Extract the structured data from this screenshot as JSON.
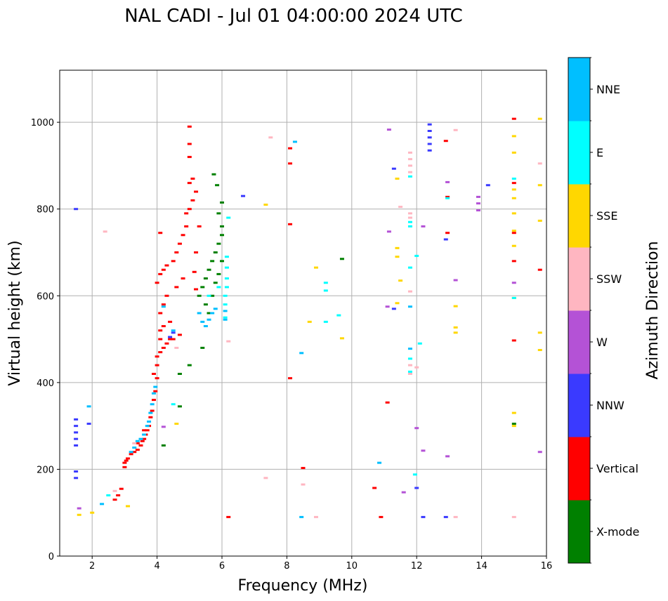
{
  "chart_data": {
    "type": "scatter",
    "title": "NAL CADI - Jul 01 04:00:00 2024 UTC",
    "xlabel": "Frequency (MHz)",
    "ylabel": "Virtual height (km)",
    "xlim": [
      1,
      16
    ],
    "ylim": [
      0,
      1120
    ],
    "xticks": [
      2,
      4,
      6,
      8,
      10,
      12,
      14,
      16
    ],
    "yticks": [
      0,
      200,
      400,
      600,
      800,
      1000
    ],
    "grid": true,
    "colorbar": {
      "title": "Azimuth Direction",
      "categories": [
        {
          "name": "X-mode",
          "color": "#008000"
        },
        {
          "name": "Vertical",
          "color": "#ff0000"
        },
        {
          "name": "NNW",
          "color": "#3a3aff"
        },
        {
          "name": "W",
          "color": "#b452d6"
        },
        {
          "name": "SSW",
          "color": "#ffb6c1"
        },
        {
          "name": "SSE",
          "color": "#ffd700"
        },
        {
          "name": "E",
          "color": "#00ffff"
        },
        {
          "name": "NNE",
          "color": "#00bfff"
        }
      ]
    },
    "series": [
      {
        "name": "Vertical",
        "color": "#ff0000",
        "points": [
          [
            2.7,
            130
          ],
          [
            2.8,
            140
          ],
          [
            2.9,
            155
          ],
          [
            3.0,
            205
          ],
          [
            3.0,
            215
          ],
          [
            3.05,
            220
          ],
          [
            3.1,
            225
          ],
          [
            3.2,
            235
          ],
          [
            3.3,
            240
          ],
          [
            3.4,
            245
          ],
          [
            3.5,
            255
          ],
          [
            3.55,
            265
          ],
          [
            3.6,
            270
          ],
          [
            3.65,
            280
          ],
          [
            3.7,
            290
          ],
          [
            3.75,
            300
          ],
          [
            3.8,
            320
          ],
          [
            3.85,
            335
          ],
          [
            3.9,
            360
          ],
          [
            3.95,
            380
          ],
          [
            3.9,
            420
          ],
          [
            4.0,
            440
          ],
          [
            4.0,
            460
          ],
          [
            4.1,
            470
          ],
          [
            4.2,
            480
          ],
          [
            4.3,
            490
          ],
          [
            4.4,
            500
          ],
          [
            4.5,
            500
          ],
          [
            4.7,
            510
          ],
          [
            4.1,
            520
          ],
          [
            4.2,
            530
          ],
          [
            4.4,
            540
          ],
          [
            4.1,
            560
          ],
          [
            4.2,
            580
          ],
          [
            4.3,
            600
          ],
          [
            4.0,
            630
          ],
          [
            4.1,
            650
          ],
          [
            4.2,
            660
          ],
          [
            4.3,
            670
          ],
          [
            4.5,
            680
          ],
          [
            4.6,
            700
          ],
          [
            4.7,
            720
          ],
          [
            4.8,
            740
          ],
          [
            4.9,
            760
          ],
          [
            4.9,
            790
          ],
          [
            5.0,
            800
          ],
          [
            5.1,
            820
          ],
          [
            5.2,
            840
          ],
          [
            5.0,
            860
          ],
          [
            5.1,
            870
          ],
          [
            5.0,
            920
          ],
          [
            5.0,
            950
          ],
          [
            5.0,
            990
          ],
          [
            4.6,
            620
          ],
          [
            4.8,
            640
          ],
          [
            5.2,
            700
          ],
          [
            5.3,
            760
          ],
          [
            4.1,
            745
          ],
          [
            5.15,
            655
          ],
          [
            5.2,
            615
          ],
          [
            3.4,
            260
          ],
          [
            3.6,
            290
          ],
          [
            4.0,
            410
          ],
          [
            4.1,
            500
          ],
          [
            8.1,
            410
          ],
          [
            8.1,
            765
          ],
          [
            8.1,
            905
          ],
          [
            8.1,
            940
          ],
          [
            8.5,
            203
          ],
          [
            10.7,
            157
          ],
          [
            10.9,
            90
          ],
          [
            11.1,
            354
          ],
          [
            6.2,
            90
          ],
          [
            12.95,
            745
          ],
          [
            12.95,
            828
          ],
          [
            12.9,
            957
          ],
          [
            15.0,
            497
          ],
          [
            15.0,
            680
          ],
          [
            15.0,
            745
          ],
          [
            15.0,
            860
          ],
          [
            15.0,
            1008
          ],
          [
            15.8,
            660
          ]
        ]
      },
      {
        "name": "X-mode",
        "color": "#008000",
        "points": [
          [
            5.3,
            600
          ],
          [
            5.4,
            620
          ],
          [
            5.5,
            640
          ],
          [
            5.6,
            660
          ],
          [
            5.7,
            680
          ],
          [
            5.8,
            700
          ],
          [
            5.9,
            720
          ],
          [
            6.0,
            740
          ],
          [
            5.5,
            580
          ],
          [
            5.6,
            560
          ],
          [
            5.7,
            600
          ],
          [
            5.8,
            630
          ],
          [
            5.9,
            650
          ],
          [
            6.0,
            680
          ],
          [
            6.0,
            760
          ],
          [
            5.9,
            790
          ],
          [
            6.0,
            815
          ],
          [
            5.85,
            855
          ],
          [
            5.75,
            880
          ],
          [
            5.4,
            480
          ],
          [
            5.0,
            440
          ],
          [
            4.7,
            420
          ],
          [
            4.7,
            345
          ],
          [
            4.2,
            255
          ],
          [
            9.7,
            685
          ],
          [
            15.0,
            305
          ]
        ]
      },
      {
        "name": "NNW",
        "color": "#3a3aff",
        "points": [
          [
            1.5,
            255
          ],
          [
            1.5,
            270
          ],
          [
            1.5,
            285
          ],
          [
            1.5,
            300
          ],
          [
            1.5,
            315
          ],
          [
            1.5,
            195
          ],
          [
            1.5,
            180
          ],
          [
            1.5,
            800
          ],
          [
            1.9,
            305
          ],
          [
            4.4,
            505
          ],
          [
            4.5,
            515
          ],
          [
            6.65,
            830
          ],
          [
            11.3,
            570
          ],
          [
            11.3,
            893
          ],
          [
            12.2,
            90
          ],
          [
            12.0,
            157
          ],
          [
            12.4,
            935
          ],
          [
            12.4,
            950
          ],
          [
            12.4,
            965
          ],
          [
            12.4,
            980
          ],
          [
            12.4,
            995
          ],
          [
            12.9,
            730
          ],
          [
            12.9,
            90
          ],
          [
            14.2,
            855
          ]
        ]
      },
      {
        "name": "W",
        "color": "#b452d6",
        "points": [
          [
            1.6,
            110
          ],
          [
            4.2,
            298
          ],
          [
            11.1,
            575
          ],
          [
            11.15,
            748
          ],
          [
            11.15,
            983
          ],
          [
            11.6,
            147
          ],
          [
            12.0,
            295
          ],
          [
            12.2,
            243
          ],
          [
            12.2,
            760
          ],
          [
            12.95,
            230
          ],
          [
            12.95,
            862
          ],
          [
            13.2,
            636
          ],
          [
            13.9,
            797
          ],
          [
            13.9,
            813
          ],
          [
            13.9,
            828
          ],
          [
            15.0,
            630
          ],
          [
            15.8,
            240
          ]
        ]
      },
      {
        "name": "SSW",
        "color": "#ffb6c1",
        "points": [
          [
            2.4,
            748
          ],
          [
            2.7,
            150
          ],
          [
            3.3,
            260
          ],
          [
            4.6,
            480
          ],
          [
            6.2,
            495
          ],
          [
            7.35,
            180
          ],
          [
            7.5,
            965
          ],
          [
            8.5,
            165
          ],
          [
            8.9,
            90
          ],
          [
            11.5,
            805
          ],
          [
            11.8,
            420
          ],
          [
            11.8,
            440
          ],
          [
            11.8,
            610
          ],
          [
            11.8,
            780
          ],
          [
            11.8,
            790
          ],
          [
            11.8,
            885
          ],
          [
            11.8,
            900
          ],
          [
            11.8,
            915
          ],
          [
            11.8,
            930
          ],
          [
            12.0,
            435
          ],
          [
            13.2,
            90
          ],
          [
            13.2,
            982
          ],
          [
            15.0,
            90
          ],
          [
            15.8,
            905
          ]
        ]
      },
      {
        "name": "SSE",
        "color": "#ffd700",
        "points": [
          [
            1.6,
            95
          ],
          [
            2.0,
            100
          ],
          [
            3.1,
            115
          ],
          [
            4.6,
            305
          ],
          [
            7.35,
            810
          ],
          [
            8.7,
            540
          ],
          [
            8.9,
            665
          ],
          [
            9.7,
            502
          ],
          [
            11.4,
            583
          ],
          [
            11.4,
            690
          ],
          [
            11.4,
            710
          ],
          [
            11.4,
            870
          ],
          [
            11.5,
            635
          ],
          [
            13.2,
            515
          ],
          [
            13.2,
            527
          ],
          [
            13.2,
            576
          ],
          [
            15.0,
            300
          ],
          [
            15.0,
            330
          ],
          [
            15.0,
            595
          ],
          [
            15.0,
            715
          ],
          [
            15.0,
            750
          ],
          [
            15.0,
            790
          ],
          [
            15.0,
            825
          ],
          [
            15.0,
            845
          ],
          [
            15.0,
            930
          ],
          [
            15.0,
            968
          ],
          [
            15.8,
            475
          ],
          [
            15.8,
            515
          ],
          [
            15.8,
            773
          ],
          [
            15.8,
            855
          ],
          [
            15.8,
            1008
          ]
        ]
      },
      {
        "name": "E",
        "color": "#00ffff",
        "points": [
          [
            2.5,
            140
          ],
          [
            4.5,
            350
          ],
          [
            5.6,
            600
          ],
          [
            5.9,
            620
          ],
          [
            6.1,
            550
          ],
          [
            6.1,
            580
          ],
          [
            6.1,
            600
          ],
          [
            6.15,
            620
          ],
          [
            6.15,
            640
          ],
          [
            6.15,
            665
          ],
          [
            6.15,
            690
          ],
          [
            6.2,
            780
          ],
          [
            9.2,
            540
          ],
          [
            9.2,
            612
          ],
          [
            9.2,
            630
          ],
          [
            9.6,
            555
          ],
          [
            11.95,
            188
          ],
          [
            12.0,
            692
          ],
          [
            12.1,
            490
          ],
          [
            11.8,
            455
          ],
          [
            11.8,
            425
          ],
          [
            11.8,
            665
          ],
          [
            11.8,
            760
          ],
          [
            11.8,
            770
          ],
          [
            11.8,
            875
          ],
          [
            12.95,
            825
          ],
          [
            15.0,
            595
          ],
          [
            15.0,
            870
          ]
        ]
      },
      {
        "name": "NNE",
        "color": "#00bfff",
        "points": [
          [
            1.9,
            345
          ],
          [
            2.3,
            120
          ],
          [
            3.2,
            240
          ],
          [
            3.3,
            250
          ],
          [
            3.4,
            265
          ],
          [
            3.5,
            270
          ],
          [
            3.6,
            280
          ],
          [
            3.7,
            300
          ],
          [
            3.75,
            310
          ],
          [
            3.8,
            330
          ],
          [
            3.85,
            350
          ],
          [
            3.9,
            375
          ],
          [
            3.95,
            390
          ],
          [
            4.2,
            575
          ],
          [
            4.5,
            520
          ],
          [
            5.4,
            540
          ],
          [
            5.5,
            530
          ],
          [
            5.6,
            545
          ],
          [
            5.3,
            560
          ],
          [
            5.7,
            560
          ],
          [
            5.8,
            570
          ],
          [
            6.1,
            545
          ],
          [
            6.1,
            565
          ],
          [
            8.25,
            955
          ],
          [
            8.45,
            468
          ],
          [
            8.45,
            90
          ],
          [
            10.85,
            215
          ],
          [
            11.8,
            478
          ],
          [
            11.8,
            575
          ]
        ]
      }
    ]
  }
}
